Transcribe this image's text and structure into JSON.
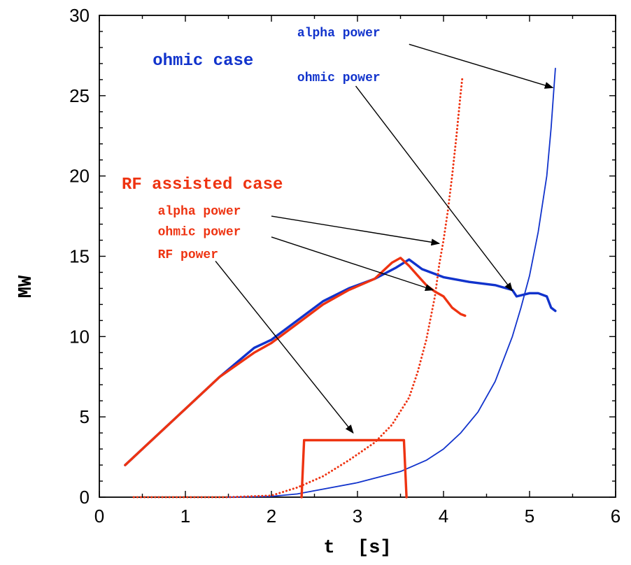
{
  "chart_data": {
    "type": "line",
    "title": "",
    "xlabel": "t  [s]",
    "ylabel": "MW",
    "xlim": [
      0,
      6
    ],
    "ylim": [
      0,
      30
    ],
    "xticks": [
      0,
      1,
      2,
      3,
      4,
      5,
      6
    ],
    "yticks": [
      0,
      5,
      10,
      15,
      20,
      25,
      30
    ],
    "grid": false,
    "legend": "none (inline annotations)",
    "colors": {
      "ohmic_case": "#1133cc",
      "rf_case": "#ee3311",
      "arrow": "#000000"
    },
    "series": [
      {
        "name": "ohmic power",
        "group": "ohmic case",
        "style": "solid-thick",
        "x": [
          0.3,
          0.6,
          1.0,
          1.4,
          1.8,
          2.0,
          2.3,
          2.6,
          2.9,
          3.2,
          3.45,
          3.6,
          3.75,
          4.0,
          4.3,
          4.6,
          4.8,
          4.85,
          5.0,
          5.1,
          5.2,
          5.25,
          5.3
        ],
        "y": [
          2.0,
          3.5,
          5.5,
          7.5,
          9.3,
          9.8,
          11.0,
          12.2,
          13.0,
          13.6,
          14.3,
          14.8,
          14.2,
          13.7,
          13.4,
          13.2,
          12.9,
          12.5,
          12.7,
          12.7,
          12.5,
          11.8,
          11.6
        ]
      },
      {
        "name": "alpha power",
        "group": "ohmic case",
        "style": "solid-thin",
        "x": [
          1.5,
          2.0,
          2.3,
          2.6,
          3.0,
          3.5,
          3.8,
          4.0,
          4.2,
          4.4,
          4.6,
          4.8,
          4.9,
          5.0,
          5.1,
          5.2,
          5.25,
          5.28,
          5.3
        ],
        "y": [
          0.0,
          0.05,
          0.2,
          0.5,
          0.9,
          1.6,
          2.3,
          3.0,
          4.0,
          5.3,
          7.2,
          10.0,
          11.8,
          13.8,
          16.5,
          20.0,
          23.0,
          25.2,
          26.7
        ]
      },
      {
        "name": "ohmic power",
        "group": "RF assisted case",
        "style": "solid-thick",
        "x": [
          0.3,
          0.6,
          1.0,
          1.4,
          1.8,
          2.0,
          2.3,
          2.6,
          2.9,
          3.2,
          3.4,
          3.5,
          3.6,
          3.7,
          3.8,
          3.9,
          4.0,
          4.1,
          4.2,
          4.25
        ],
        "y": [
          2.0,
          3.5,
          5.5,
          7.5,
          9.0,
          9.6,
          10.8,
          12.0,
          12.9,
          13.6,
          14.6,
          14.9,
          14.4,
          13.8,
          13.2,
          12.8,
          12.5,
          11.8,
          11.4,
          11.3
        ]
      },
      {
        "name": "alpha power",
        "group": "RF assisted case",
        "style": "dotted",
        "x": [
          0.4,
          1.0,
          1.5,
          2.0,
          2.3,
          2.6,
          2.9,
          3.2,
          3.4,
          3.6,
          3.7,
          3.8,
          3.9,
          3.95,
          4.0,
          4.05,
          4.1,
          4.15,
          4.2,
          4.22
        ],
        "y": [
          0.0,
          0.0,
          0.0,
          0.1,
          0.6,
          1.3,
          2.3,
          3.4,
          4.5,
          6.2,
          7.8,
          9.8,
          12.5,
          14.5,
          16.0,
          17.8,
          20.0,
          22.5,
          25.2,
          26.2
        ]
      },
      {
        "name": "RF power",
        "group": "RF assisted case",
        "style": "solid-thick",
        "x": [
          2.35,
          2.38,
          3.5,
          3.54,
          3.57
        ],
        "y": [
          0,
          3.55,
          3.55,
          3.55,
          0
        ]
      }
    ],
    "annotations": [
      {
        "text": "ohmic  case",
        "color": "#1133cc",
        "size": 24,
        "x": 0.62,
        "y": 26.9,
        "arrow_to": null
      },
      {
        "text": "alpha power",
        "color": "#1133cc",
        "size": 18,
        "x": 2.3,
        "y": 28.7,
        "arrow_from": [
          3.6,
          28.2
        ],
        "arrow_to": [
          5.27,
          25.5
        ]
      },
      {
        "text": "ohmic power",
        "color": "#1133cc",
        "size": 18,
        "x": 2.3,
        "y": 25.9,
        "arrow_from": [
          2.98,
          25.6
        ],
        "arrow_to": [
          4.8,
          12.85
        ]
      },
      {
        "text": "RF assisted case",
        "color": "#ee3311",
        "size": 24,
        "x": 0.26,
        "y": 19.2,
        "arrow_to": null
      },
      {
        "text": "alpha power",
        "color": "#ee3311",
        "size": 18,
        "x": 0.68,
        "y": 17.6,
        "arrow_from": [
          2.0,
          17.5
        ],
        "arrow_to": [
          3.95,
          15.8
        ]
      },
      {
        "text": "ohmic power",
        "color": "#ee3311",
        "size": 18,
        "x": 0.68,
        "y": 16.3,
        "arrow_from": [
          2.0,
          16.2
        ],
        "arrow_to": [
          3.88,
          12.9
        ]
      },
      {
        "text": "RF power",
        "color": "#ee3311",
        "size": 18,
        "x": 0.68,
        "y": 14.9,
        "arrow_from": [
          1.35,
          14.7
        ],
        "arrow_to": [
          2.95,
          4.0
        ]
      }
    ]
  }
}
